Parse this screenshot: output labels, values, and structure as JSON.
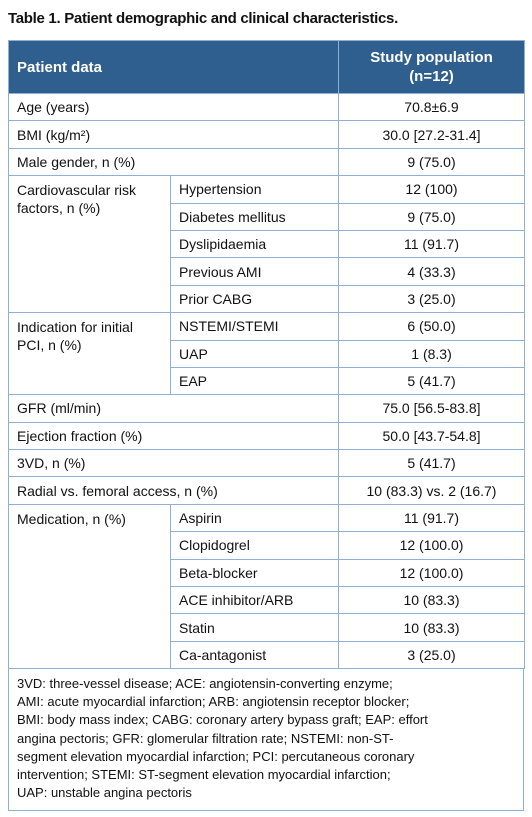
{
  "title": "Table 1. Patient demographic and clinical characteristics.",
  "header": {
    "patient_data": "Patient data",
    "study_population": [
      "Study population",
      "(n=12)"
    ]
  },
  "rows": [
    {
      "label": "Age (years)",
      "value": "70.8±6.9"
    },
    {
      "label": "BMI (kg/m²)",
      "value": "30.0 [27.2-31.4]"
    },
    {
      "label": "Male gender, n (%)",
      "value": "9 (75.0)"
    },
    {
      "label": "Cardiovascular risk factors, n (%)",
      "items": [
        {
          "label": "Hypertension",
          "value": "12 (100)"
        },
        {
          "label": "Diabetes mellitus",
          "value": "9 (75.0)"
        },
        {
          "label": "Dyslipidaemia",
          "value": "11 (91.7)"
        },
        {
          "label": "Previous AMI",
          "value": "4 (33.3)"
        },
        {
          "label": "Prior CABG",
          "value": "3 (25.0)"
        }
      ]
    },
    {
      "label": "Indication for initial PCI, n (%)",
      "items": [
        {
          "label": "NSTEMI/STEMI",
          "value": "6 (50.0)"
        },
        {
          "label": "UAP",
          "value": "1 (8.3)"
        },
        {
          "label": "EAP",
          "value": "5 (41.7)"
        }
      ]
    },
    {
      "label": "GFR (ml/min)",
      "value": "75.0 [56.5-83.8]"
    },
    {
      "label": "Ejection fraction (%)",
      "value": "50.0 [43.7-54.8]"
    },
    {
      "label": "3VD, n (%)",
      "value": "5 (41.7)"
    },
    {
      "label": "Radial vs. femoral access, n (%)",
      "value": "10 (83.3) vs. 2 (16.7)"
    },
    {
      "label": "Medication, n (%)",
      "items": [
        {
          "label": "Aspirin",
          "value": "11 (91.7)"
        },
        {
          "label": "Clopidogrel",
          "value": "12 (100.0)"
        },
        {
          "label": "Beta-blocker",
          "value": "12 (100.0)"
        },
        {
          "label": "ACE inhibitor/ARB",
          "value": "10 (83.3)"
        },
        {
          "label": "Statin",
          "value": "10 (83.3)"
        },
        {
          "label": "Ca-antagonist",
          "value": "3 (25.0)"
        }
      ]
    }
  ],
  "footnote": [
    "3VD: three-vessel disease; ACE: angiotensin-converting enzyme;",
    "AMI: acute myocardial infarction; ARB: angiotensin receptor blocker;",
    "BMI: body mass index; CABG: coronary artery bypass graft; EAP: effort",
    "angina pectoris; GFR: glomerular filtration rate; NSTEMI: non-ST-",
    "segment elevation myocardial infarction; PCI: percutaneous coronary",
    "intervention; STEMI: ST-segment elevation myocardial infarction;",
    "UAP: unstable angina pectoris"
  ]
}
